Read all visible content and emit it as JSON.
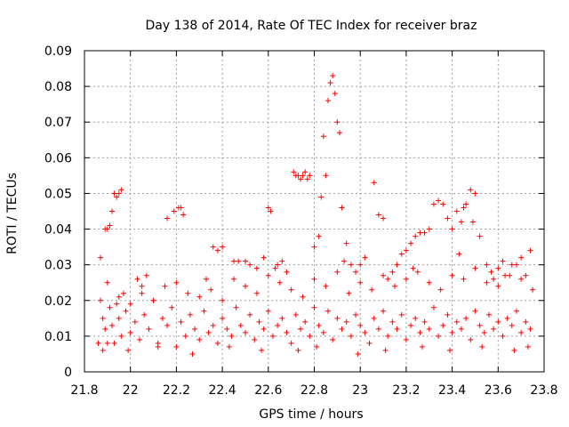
{
  "chart_data": {
    "type": "scatter",
    "title": "Day 138 of 2014, Rate Of TEC Index for receiver braz",
    "xlabel": "GPS time / hours",
    "ylabel": "ROTI / TECUs",
    "xlim": [
      21.8,
      23.8
    ],
    "ylim": [
      0,
      0.09
    ],
    "xticks": [
      21.8,
      22.0,
      22.2,
      22.4,
      22.6,
      22.8,
      23.0,
      23.2,
      23.4,
      23.6,
      23.8
    ],
    "xtick_labels": [
      "21.8",
      "22",
      "22.2",
      "22.4",
      "22.6",
      "22.8",
      "23",
      "23.2",
      "23.4",
      "23.6",
      "23.8"
    ],
    "yticks": [
      0,
      0.01,
      0.02,
      0.03,
      0.04,
      0.05,
      0.06,
      0.07,
      0.08,
      0.09
    ],
    "ytick_labels": [
      "0",
      "0.01",
      "0.02",
      "0.03",
      "0.04",
      "0.05",
      "0.06",
      "0.07",
      "0.08",
      "0.09"
    ],
    "grid": true,
    "marker": "+",
    "marker_color": "#ff0000",
    "x": [
      21.87,
      21.88,
      21.89,
      21.9,
      21.91,
      21.92,
      21.93,
      21.94,
      21.95,
      21.96,
      21.87,
      21.89,
      21.91,
      21.93,
      21.95,
      21.97,
      21.88,
      21.9,
      21.92,
      21.94,
      21.96,
      21.98,
      22.0,
      22.02,
      22.04,
      22.06,
      22.08,
      22.1,
      22.12,
      22.14,
      22.16,
      22.18,
      22.2,
      22.22,
      22.24,
      22.26,
      22.28,
      22.3,
      22.32,
      22.34,
      22.36,
      22.38,
      22.4,
      22.42,
      22.44,
      22.46,
      22.48,
      22.5,
      22.52,
      22.54,
      22.56,
      22.58,
      22.6,
      22.62,
      22.64,
      22.66,
      22.68,
      22.7,
      22.72,
      22.74,
      22.76,
      22.78,
      22.8,
      22.82,
      22.84,
      22.86,
      22.88,
      22.9,
      22.92,
      22.94,
      22.96,
      22.98,
      23.0,
      23.02,
      23.04,
      23.06,
      23.08,
      23.1,
      23.12,
      23.14,
      23.16,
      23.18,
      23.2,
      23.22,
      23.24,
      23.26,
      23.28,
      23.3,
      23.32,
      23.34,
      23.36,
      23.38,
      23.4,
      23.42,
      23.44,
      23.46,
      23.48,
      23.5,
      23.52,
      23.54,
      23.56,
      23.58,
      23.6,
      23.62,
      23.64,
      23.66,
      23.68,
      23.7,
      23.72,
      23.74,
      21.9,
      21.95,
      22.0,
      22.05,
      22.1,
      22.15,
      22.2,
      22.25,
      22.3,
      22.35,
      22.4,
      22.45,
      22.5,
      22.55,
      22.6,
      22.65,
      22.7,
      22.75,
      22.8,
      22.85,
      22.9,
      22.95,
      23.0,
      23.05,
      23.1,
      23.15,
      23.2,
      23.25,
      23.3,
      23.35,
      23.4,
      23.45,
      23.5,
      23.55,
      23.6,
      23.65,
      23.7,
      23.75,
      22.71,
      22.72,
      22.73,
      22.74,
      22.75,
      22.76,
      22.77,
      22.78,
      22.86,
      22.87,
      22.88,
      22.84,
      22.85,
      22.89,
      22.9,
      22.83,
      22.91,
      22.92,
      22.19,
      22.21,
      22.22,
      22.16,
      22.23,
      22.03,
      22.05,
      22.6,
      22.61,
      22.36,
      22.38,
      22.4,
      22.45,
      22.47,
      23.06,
      23.08,
      23.1,
      23.32,
      23.34,
      23.36,
      23.38,
      23.4,
      23.42,
      23.44,
      23.46,
      23.48,
      23.5,
      23.52,
      23.45,
      23.49,
      23.18,
      23.2,
      23.22,
      23.24,
      23.26,
      23.28,
      23.3,
      23.16,
      23.14,
      23.12,
      23.68,
      23.7,
      23.72,
      23.74,
      23.6,
      23.62,
      23.55,
      23.57,
      22.5,
      22.52,
      22.55,
      22.58,
      22.64,
      22.66,
      22.68,
      22.8,
      22.82,
      22.94,
      22.96,
      22.98,
      23.0,
      23.02,
      23.58,
      23.66,
      21.86,
      21.99,
      22.12,
      22.27,
      22.43,
      22.57,
      22.73,
      22.81,
      22.99,
      23.11,
      23.27,
      23.39,
      23.53,
      23.67,
      23.73,
      22.07,
      22.33,
      22.63,
      22.93,
      23.23,
      23.43,
      23.63
    ],
    "y": [
      0.02,
      0.015,
      0.04,
      0.04,
      0.041,
      0.045,
      0.05,
      0.049,
      0.05,
      0.051,
      0.032,
      0.012,
      0.018,
      0.008,
      0.015,
      0.022,
      0.006,
      0.025,
      0.013,
      0.019,
      0.01,
      0.017,
      0.011,
      0.014,
      0.009,
      0.016,
      0.012,
      0.02,
      0.008,
      0.015,
      0.013,
      0.018,
      0.007,
      0.014,
      0.01,
      0.016,
      0.012,
      0.009,
      0.017,
      0.011,
      0.013,
      0.008,
      0.015,
      0.012,
      0.01,
      0.018,
      0.013,
      0.011,
      0.016,
      0.009,
      0.014,
      0.012,
      0.017,
      0.01,
      0.013,
      0.015,
      0.011,
      0.008,
      0.016,
      0.012,
      0.014,
      0.01,
      0.018,
      0.013,
      0.011,
      0.017,
      0.009,
      0.015,
      0.012,
      0.014,
      0.01,
      0.016,
      0.013,
      0.011,
      0.008,
      0.015,
      0.012,
      0.017,
      0.01,
      0.014,
      0.012,
      0.016,
      0.009,
      0.013,
      0.015,
      0.011,
      0.014,
      0.012,
      0.018,
      0.01,
      0.013,
      0.016,
      0.011,
      0.014,
      0.012,
      0.015,
      0.009,
      0.017,
      0.013,
      0.011,
      0.016,
      0.012,
      0.014,
      0.01,
      0.015,
      0.013,
      0.017,
      0.011,
      0.014,
      0.012,
      0.008,
      0.021,
      0.019,
      0.022,
      0.02,
      0.024,
      0.025,
      0.022,
      0.021,
      0.023,
      0.02,
      0.026,
      0.024,
      0.022,
      0.027,
      0.025,
      0.023,
      0.021,
      0.026,
      0.024,
      0.028,
      0.022,
      0.025,
      0.023,
      0.027,
      0.024,
      0.026,
      0.028,
      0.025,
      0.023,
      0.027,
      0.026,
      0.029,
      0.025,
      0.024,
      0.027,
      0.026,
      0.023,
      0.056,
      0.055,
      0.055,
      0.054,
      0.055,
      0.056,
      0.054,
      0.055,
      0.076,
      0.081,
      0.083,
      0.066,
      0.055,
      0.078,
      0.07,
      0.049,
      0.067,
      0.046,
      0.045,
      0.046,
      0.046,
      0.043,
      0.044,
      0.026,
      0.024,
      0.046,
      0.045,
      0.035,
      0.034,
      0.035,
      0.031,
      0.031,
      0.053,
      0.044,
      0.043,
      0.047,
      0.048,
      0.047,
      0.043,
      0.04,
      0.045,
      0.042,
      0.047,
      0.051,
      0.05,
      0.038,
      0.046,
      0.042,
      0.033,
      0.034,
      0.036,
      0.038,
      0.039,
      0.039,
      0.04,
      0.03,
      0.028,
      0.026,
      0.03,
      0.032,
      0.027,
      0.034,
      0.029,
      0.031,
      0.03,
      0.028,
      0.031,
      0.03,
      0.029,
      0.032,
      0.03,
      0.031,
      0.028,
      0.035,
      0.038,
      0.036,
      0.03,
      0.028,
      0.03,
      0.032,
      0.026,
      0.03,
      0.008,
      0.006,
      0.007,
      0.005,
      0.007,
      0.006,
      0.006,
      0.007,
      0.005,
      0.006,
      0.007,
      0.006,
      0.007,
      0.006,
      0.007,
      0.027,
      0.026,
      0.029,
      0.031,
      0.029,
      0.033,
      0.027
    ]
  }
}
